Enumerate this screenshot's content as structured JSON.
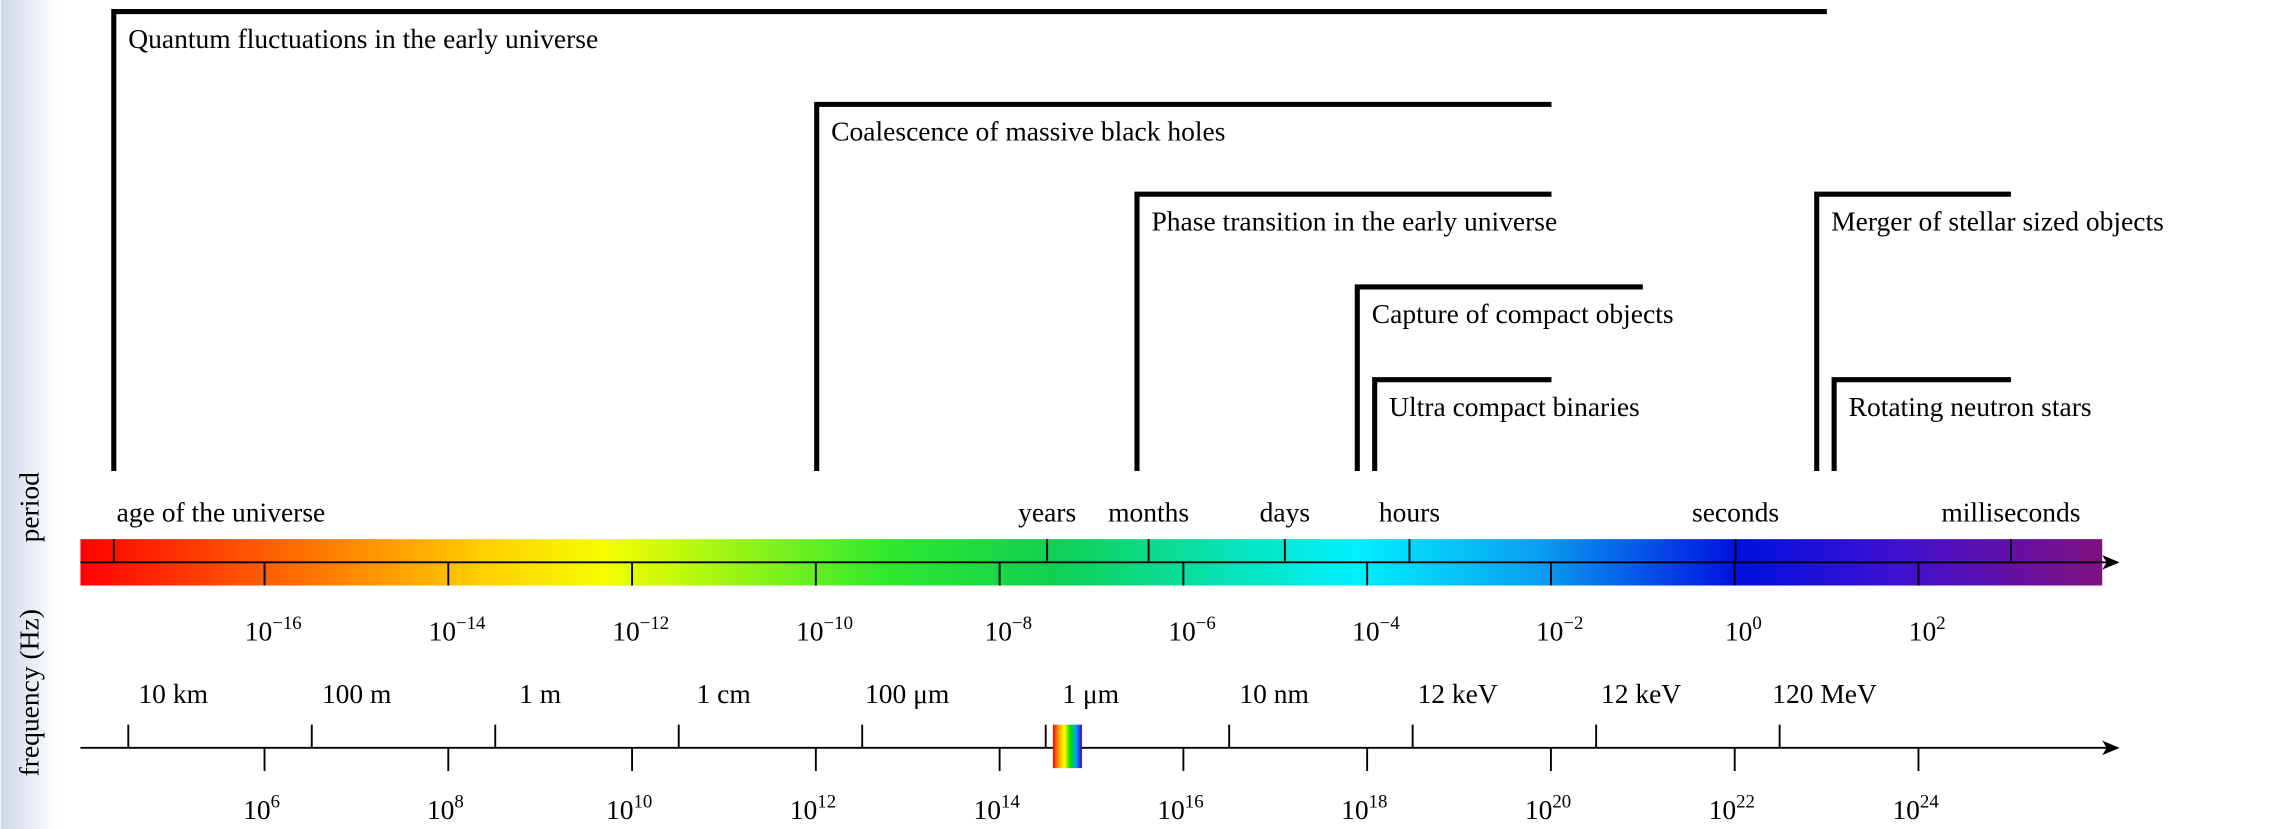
{
  "sources": [
    {
      "label": "Quantum fluctuations in the early universe"
    },
    {
      "label": "Coalescence of massive black holes"
    },
    {
      "label": "Phase transition in the early universe"
    },
    {
      "label": "Capture of compact objects"
    },
    {
      "label": "Ultra compact binaries"
    },
    {
      "label": "Merger of stellar sized objects"
    },
    {
      "label": "Rotating neutron stars"
    }
  ],
  "axis_labels": {
    "period": "period",
    "frequency": "frequency (Hz)"
  },
  "period_labels": [
    "age of the universe",
    "years",
    "months",
    "days",
    "hours",
    "seconds",
    "milliseconds"
  ],
  "gw_frequency_ticks": [
    {
      "base": "10",
      "exponent": "−16"
    },
    {
      "base": "10",
      "exponent": "−14"
    },
    {
      "base": "10",
      "exponent": "−12"
    },
    {
      "base": "10",
      "exponent": "−10"
    },
    {
      "base": "10",
      "exponent": "−8"
    },
    {
      "base": "10",
      "exponent": "−6"
    },
    {
      "base": "10",
      "exponent": "−4"
    },
    {
      "base": "10",
      "exponent": "−2"
    },
    {
      "base": "10",
      "exponent": "0"
    },
    {
      "base": "10",
      "exponent": "2"
    }
  ],
  "wavelength_labels": [
    "10 km",
    "100 m",
    "1 m",
    "1 cm",
    "100 μm",
    "1 μm",
    "10 nm",
    "12 keV",
    "12 keV",
    "120 MeV"
  ],
  "em_frequency_ticks": [
    {
      "base": "10",
      "exponent": "6"
    },
    {
      "base": "10",
      "exponent": "8"
    },
    {
      "base": "10",
      "exponent": "10"
    },
    {
      "base": "10",
      "exponent": "12"
    },
    {
      "base": "10",
      "exponent": "14"
    },
    {
      "base": "10",
      "exponent": "16"
    },
    {
      "base": "10",
      "exponent": "18"
    },
    {
      "base": "10",
      "exponent": "20"
    },
    {
      "base": "10",
      "exponent": "22"
    },
    {
      "base": "10",
      "exponent": "24"
    }
  ]
}
